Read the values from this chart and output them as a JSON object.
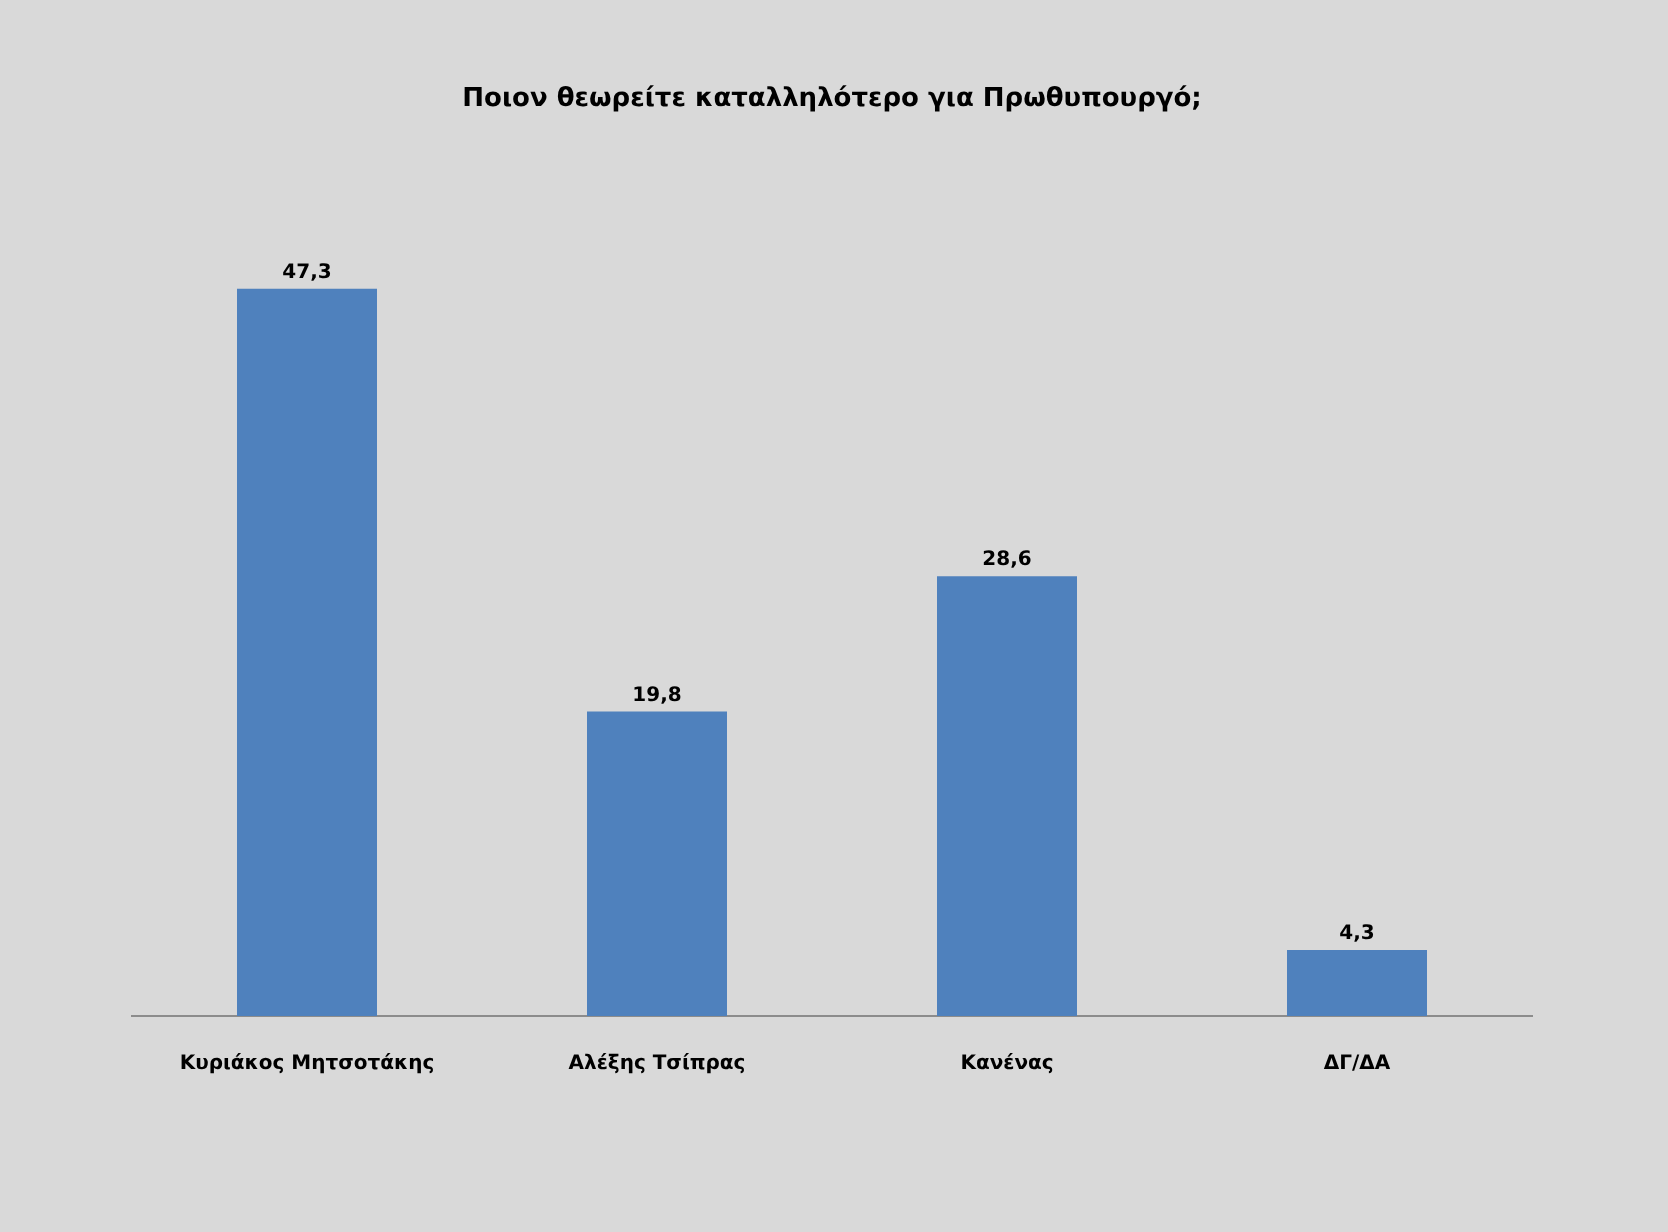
{
  "chart_data": {
    "type": "bar",
    "title": "Ποιον θεωρείτε καταλληλότερο για Πρωθυπουργό;",
    "categories": [
      "Κυριάκος Μητσοτάκης",
      "Αλέξης Τσίπρας",
      "Κανένας",
      "ΔΓ/ΔΑ"
    ],
    "values": [
      47.3,
      19.8,
      28.6,
      4.3
    ],
    "value_labels": [
      "47,3",
      "19,8",
      "28,6",
      "4,3"
    ],
    "color": "#4f81bd",
    "grid": false,
    "legend": false
  }
}
